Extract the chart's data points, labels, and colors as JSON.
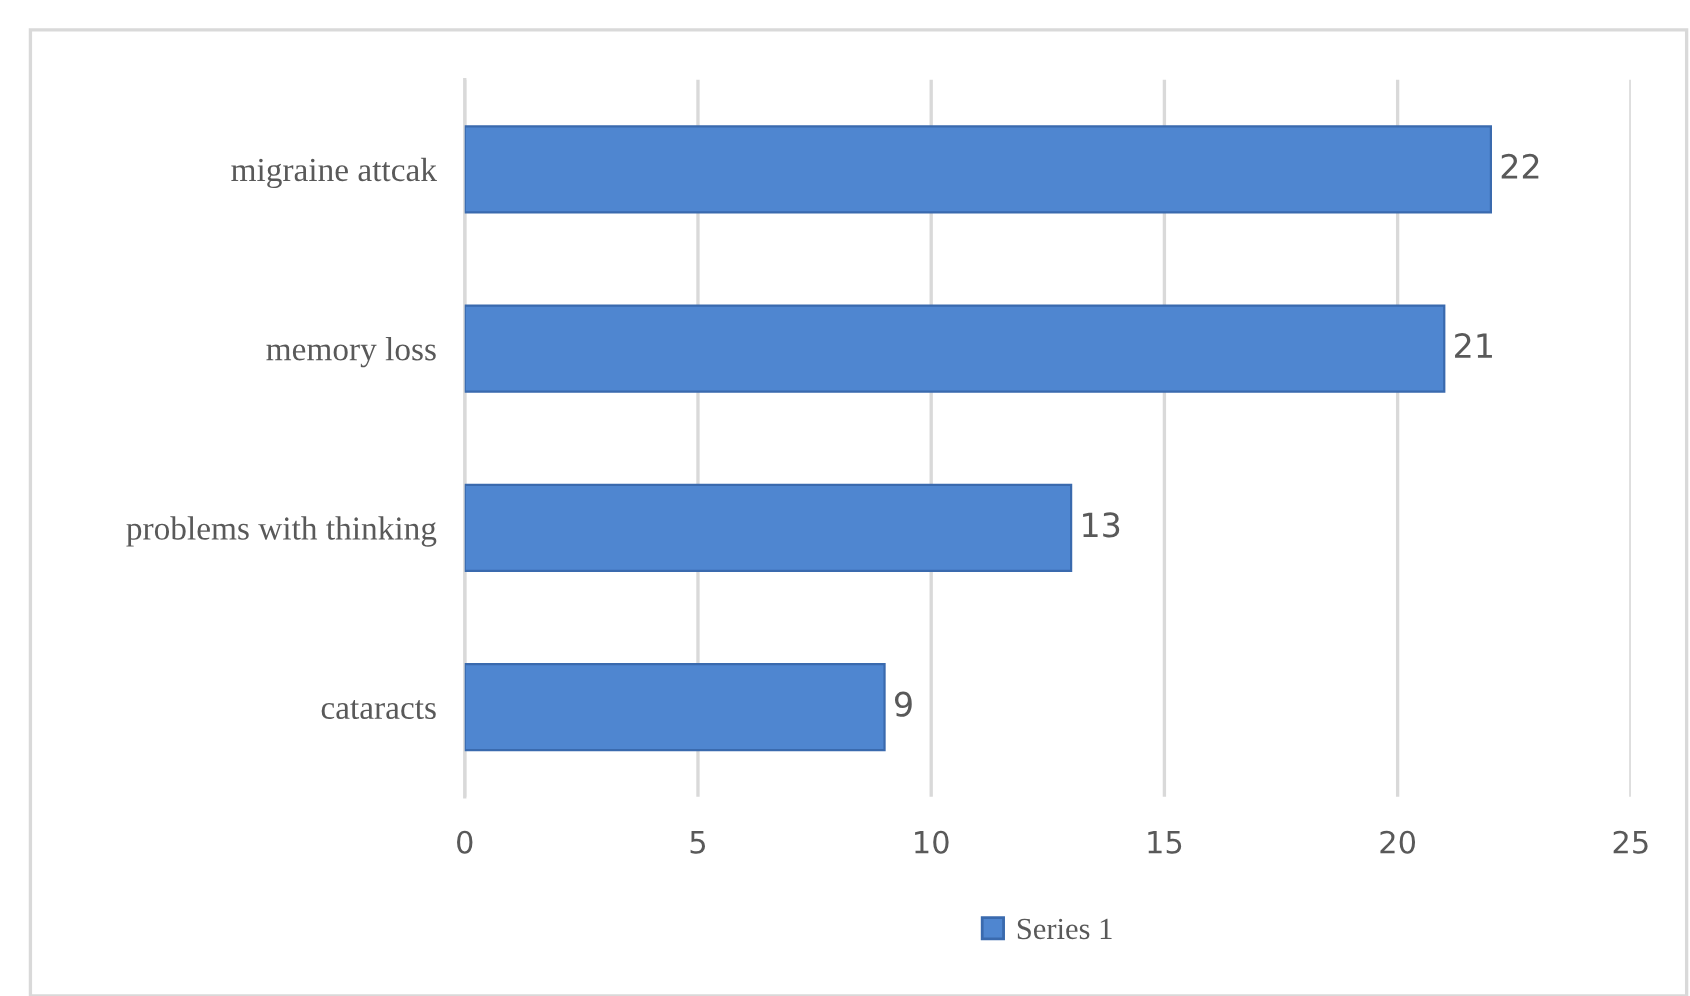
{
  "chart_data": {
    "type": "bar",
    "orientation": "horizontal",
    "categories": [
      "migraine attcak",
      "memory loss",
      "problems with thinking",
      "cataracts"
    ],
    "series": [
      {
        "name": "Series 1",
        "color": "#4f86d0",
        "values": [
          22,
          21,
          13,
          9
        ]
      }
    ],
    "xlim": [
      0,
      25
    ],
    "xticks": [
      0,
      5,
      10,
      15,
      20,
      25
    ],
    "grid": "x",
    "legend": "bottom",
    "data_labels": true
  }
}
